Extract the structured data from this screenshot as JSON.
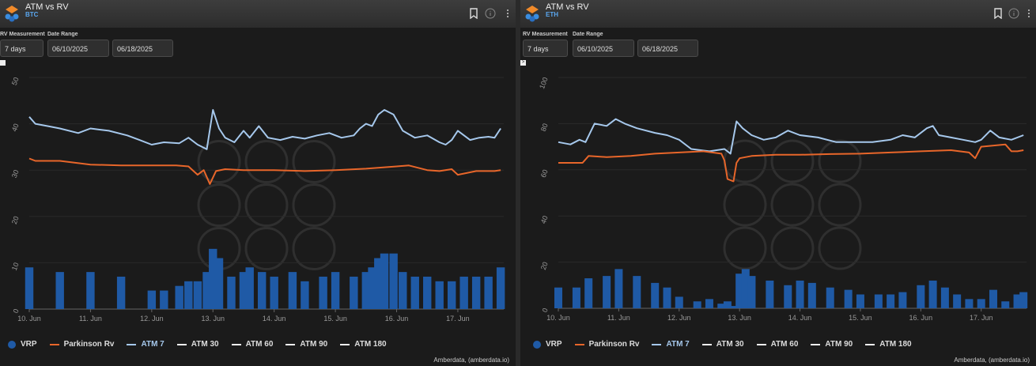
{
  "colors": {
    "vrp": "#1f5aa6",
    "rv": "#e8662a",
    "atm7": "#a6c8ec",
    "atm_other": "#eeeeee"
  },
  "panels": [
    {
      "title": "ATM vs RV",
      "asset": "BTC",
      "rv_label": "RV Measurement",
      "date_label": "Date Range",
      "rv_value": "7 days",
      "date_from": "06/10/2025",
      "date_to": "06/18/2025",
      "marker": "",
      "credit": "Amberdata, (amberdata.io)",
      "legend": [
        "VRP",
        "Parkinson Rv",
        "ATM 7",
        "ATM 30",
        "ATM 60",
        "ATM 90",
        "ATM 180"
      ]
    },
    {
      "title": "ATM vs RV",
      "asset": "ETH",
      "rv_label": "RV Measurement",
      "date_label": "Date Range",
      "rv_value": "7 days",
      "date_from": "06/10/2025",
      "date_to": "06/18/2025",
      "marker": ">",
      "credit": "Amberdata, (amberdata.io)",
      "legend": [
        "VRP",
        "Parkinson Rv",
        "ATM 7",
        "ATM 30",
        "ATM 60",
        "ATM 90",
        "ATM 180"
      ]
    }
  ],
  "chart_data": [
    {
      "type": "line",
      "title": "ATM vs RV BTC",
      "xticks": [
        "10. Jun",
        "11. Jun",
        "12. Jun",
        "13. Jun",
        "14. Jun",
        "15. Jun",
        "16. Jun",
        "17. Jun"
      ],
      "yticks": [
        0,
        10,
        20,
        30,
        40,
        50
      ],
      "ylim": [
        0,
        50
      ],
      "xlim": [
        0,
        7.75
      ],
      "legend_position": "bottom",
      "series": [
        {
          "name": "ATM 7",
          "type": "line",
          "x": [
            0,
            0.1,
            0.3,
            0.5,
            0.8,
            1.0,
            1.3,
            1.6,
            1.8,
            2.0,
            2.2,
            2.45,
            2.6,
            2.75,
            2.9,
            3.0,
            3.1,
            3.2,
            3.35,
            3.5,
            3.6,
            3.75,
            3.9,
            4.1,
            4.3,
            4.5,
            4.7,
            4.9,
            5.1,
            5.3,
            5.4,
            5.5,
            5.6,
            5.7,
            5.8,
            5.95,
            6.1,
            6.3,
            6.5,
            6.7,
            6.8,
            6.9,
            7.0,
            7.2,
            7.35,
            7.5,
            7.6,
            7.7
          ],
          "y": [
            41.5,
            40,
            39.5,
            39,
            38,
            39,
            38.5,
            37.5,
            36.5,
            35.5,
            36,
            35.8,
            37,
            35.5,
            34.5,
            43,
            39,
            37,
            36,
            38.5,
            37,
            39.5,
            37,
            36.5,
            37.2,
            36.8,
            37.5,
            38,
            37,
            37.5,
            39,
            40,
            39.5,
            42,
            43,
            42,
            38.5,
            37,
            37.5,
            36,
            35.5,
            36.5,
            38.5,
            36.5,
            37,
            37.2,
            37,
            39
          ]
        },
        {
          "name": "Parkinson Rv",
          "type": "line",
          "x": [
            0,
            0.1,
            0.5,
            1.0,
            1.5,
            2.0,
            2.4,
            2.6,
            2.75,
            2.85,
            2.95,
            3.05,
            3.2,
            3.5,
            4.0,
            4.5,
            5.0,
            5.5,
            6.0,
            6.2,
            6.5,
            6.7,
            6.9,
            7.0,
            7.3,
            7.6,
            7.7
          ],
          "y": [
            32.5,
            32,
            32,
            31.2,
            31,
            31,
            31,
            30.8,
            29,
            30,
            27,
            29.8,
            30.2,
            30,
            30,
            29.8,
            30,
            30.3,
            30.8,
            31,
            30,
            29.8,
            30.2,
            29,
            29.8,
            29.8,
            30
          ]
        },
        {
          "name": "VRP",
          "type": "bar",
          "x": [
            0,
            0.5,
            1.0,
            1.5,
            2.0,
            2.2,
            2.45,
            2.6,
            2.75,
            2.9,
            3.0,
            3.1,
            3.3,
            3.5,
            3.6,
            3.8,
            4.0,
            4.3,
            4.5,
            4.8,
            5.0,
            5.3,
            5.5,
            5.6,
            5.7,
            5.8,
            5.95,
            6.1,
            6.3,
            6.5,
            6.7,
            6.9,
            7.1,
            7.3,
            7.5,
            7.7
          ],
          "y": [
            9,
            8,
            8,
            7,
            4,
            4,
            5,
            6,
            6,
            8,
            13,
            11,
            7,
            8,
            9,
            8,
            7,
            8,
            6,
            7,
            8,
            7,
            8,
            9,
            11,
            12,
            12,
            8,
            7,
            7,
            6,
            6,
            7,
            7,
            7,
            9
          ]
        }
      ]
    },
    {
      "type": "line",
      "title": "ATM vs RV ETH",
      "xticks": [
        "10. Jun",
        "11. Jun",
        "12. Jun",
        "13. Jun",
        "14. Jun",
        "15. Jun",
        "16. Jun",
        "17. Jun"
      ],
      "yticks": [
        0,
        20,
        40,
        60,
        80,
        100
      ],
      "ylim": [
        0,
        100
      ],
      "xlim": [
        0,
        7.75
      ],
      "legend_position": "bottom",
      "series": [
        {
          "name": "ATM 7",
          "type": "line",
          "x": [
            0,
            0.2,
            0.35,
            0.45,
            0.6,
            0.8,
            0.95,
            1.1,
            1.3,
            1.6,
            1.8,
            2.0,
            2.2,
            2.5,
            2.75,
            2.85,
            2.95,
            3.05,
            3.2,
            3.4,
            3.6,
            3.8,
            4.0,
            4.3,
            4.6,
            4.9,
            5.2,
            5.5,
            5.7,
            5.9,
            6.1,
            6.2,
            6.3,
            6.5,
            6.7,
            6.9,
            7.0,
            7.15,
            7.3,
            7.5,
            7.7
          ],
          "y": [
            72,
            71,
            73,
            72,
            80,
            79,
            82,
            80,
            78,
            76,
            75,
            73,
            69,
            68,
            69,
            67,
            81,
            78,
            75,
            73,
            74,
            77,
            75,
            74,
            72,
            72,
            72,
            73,
            75,
            74,
            78,
            79,
            75,
            74,
            73,
            72,
            73,
            77,
            74,
            73,
            75
          ]
        },
        {
          "name": "Parkinson Rv",
          "type": "line",
          "x": [
            0,
            0.1,
            0.4,
            0.5,
            0.8,
            1.2,
            1.6,
            2.0,
            2.4,
            2.7,
            2.75,
            2.8,
            2.9,
            2.95,
            3.0,
            3.2,
            3.6,
            4.0,
            4.5,
            5.0,
            5.5,
            6.0,
            6.5,
            6.8,
            6.9,
            7.0,
            7.4,
            7.5,
            7.6,
            7.7
          ],
          "y": [
            63,
            63,
            63,
            66,
            65.5,
            66,
            67,
            67.5,
            68,
            67,
            64,
            56,
            55,
            63,
            65,
            66,
            66.5,
            66.5,
            66.8,
            67,
            67.5,
            68,
            68.5,
            67.5,
            65,
            70,
            71,
            68,
            68,
            68.5
          ]
        },
        {
          "name": "VRP",
          "type": "bar",
          "x": [
            0,
            0.3,
            0.5,
            0.8,
            1.0,
            1.3,
            1.6,
            1.8,
            2.0,
            2.3,
            2.5,
            2.7,
            2.8,
            2.9,
            3.0,
            3.1,
            3.2,
            3.5,
            3.8,
            4.0,
            4.2,
            4.5,
            4.8,
            5.0,
            5.3,
            5.5,
            5.7,
            6.0,
            6.2,
            6.4,
            6.6,
            6.8,
            7.0,
            7.2,
            7.4,
            7.6,
            7.7
          ],
          "y": [
            9,
            9,
            13,
            14,
            17,
            14,
            11,
            9,
            5,
            3,
            4,
            2,
            3,
            1,
            15,
            17,
            14,
            12,
            10,
            12,
            11,
            9,
            8,
            6,
            6,
            6,
            7,
            10,
            12,
            9,
            6,
            4,
            4,
            8,
            3,
            6,
            7
          ]
        }
      ]
    }
  ]
}
